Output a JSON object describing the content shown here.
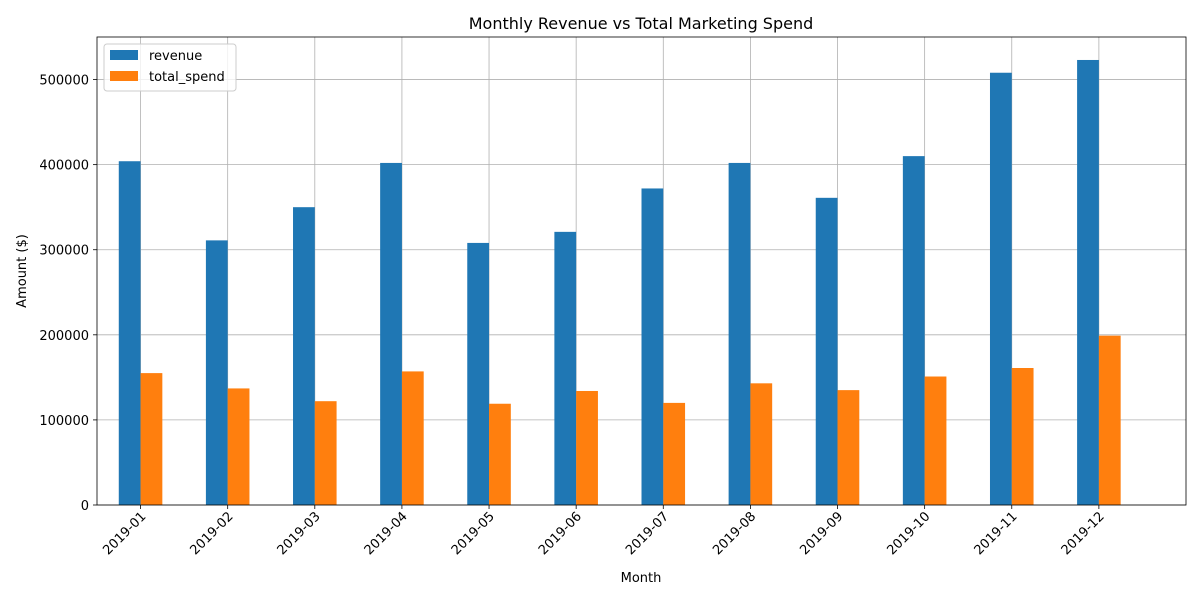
{
  "chart_data": {
    "type": "bar",
    "title": "Monthly Revenue vs Total Marketing Spend",
    "xlabel": "Month",
    "ylabel": "Amount ($)",
    "categories": [
      "2019-01",
      "2019-02",
      "2019-03",
      "2019-04",
      "2019-05",
      "2019-06",
      "2019-07",
      "2019-08",
      "2019-09",
      "2019-10",
      "2019-11",
      "2019-12"
    ],
    "series": [
      {
        "name": "revenue",
        "color": "#1f77b4",
        "values": [
          404000,
          311000,
          350000,
          402000,
          308000,
          321000,
          372000,
          402000,
          361000,
          410000,
          508000,
          523000
        ]
      },
      {
        "name": "total_spend",
        "color": "#ff7f0e",
        "values": [
          155000,
          137000,
          122000,
          157000,
          119000,
          134000,
          120000,
          143000,
          135000,
          151000,
          161000,
          199000
        ]
      }
    ],
    "ylim": [
      0,
      550000
    ],
    "yticks": [
      0,
      100000,
      200000,
      300000,
      400000,
      500000
    ],
    "ytick_labels": [
      "0",
      "100000",
      "200000",
      "300000",
      "400000",
      "500000"
    ],
    "grid": true,
    "legend_position": "upper-left",
    "xtick_rotation": 45
  }
}
